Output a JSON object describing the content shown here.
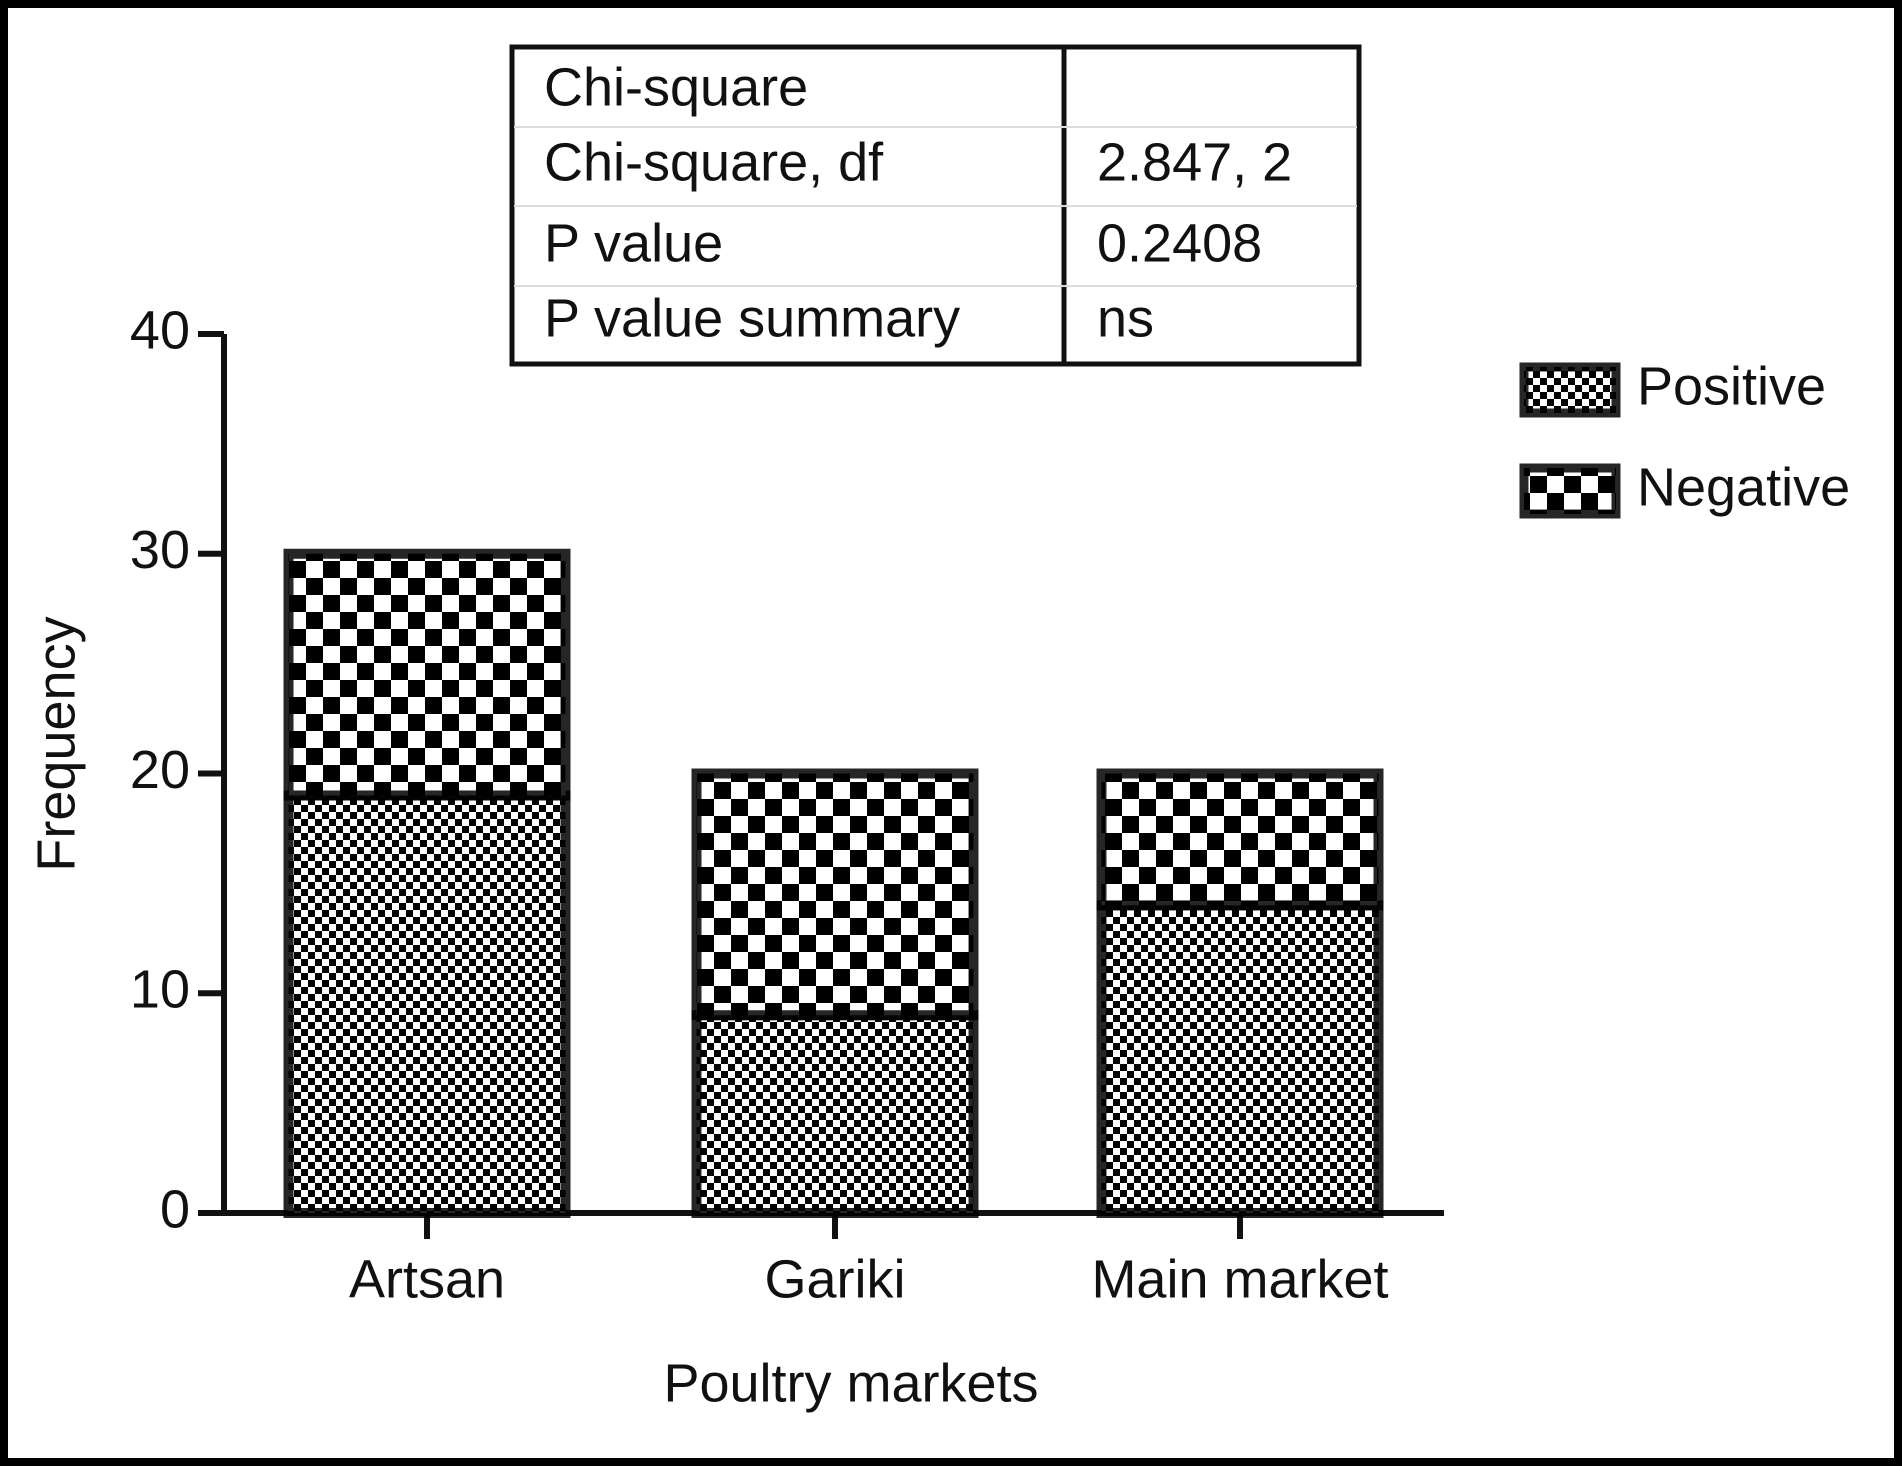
{
  "chart_data": {
    "type": "stacked_bar",
    "table": {
      "rows": [
        [
          "Chi-square"
        ],
        [
          "Chi-square, df",
          "2.847, 2"
        ],
        [
          "P value",
          "0.2408"
        ],
        [
          "P value summary",
          "ns"
        ]
      ]
    },
    "xlabel": "Poultry markets",
    "ylabel": "Frequency",
    "categories": [
      "Artsan",
      "Gariki",
      "Main market"
    ],
    "series": [
      {
        "name": "Positive",
        "color": "#000000",
        "pattern": "fine",
        "values": [
          19,
          9,
          14
        ]
      },
      {
        "name": "Negative",
        "color": "#000000",
        "pattern": "coarse",
        "values": [
          11,
          11,
          6
        ]
      }
    ],
    "ylim": [
      0,
      40
    ],
    "yticks": [
      0,
      10,
      20,
      30,
      40
    ],
    "grid": false,
    "legend": "upper right"
  }
}
